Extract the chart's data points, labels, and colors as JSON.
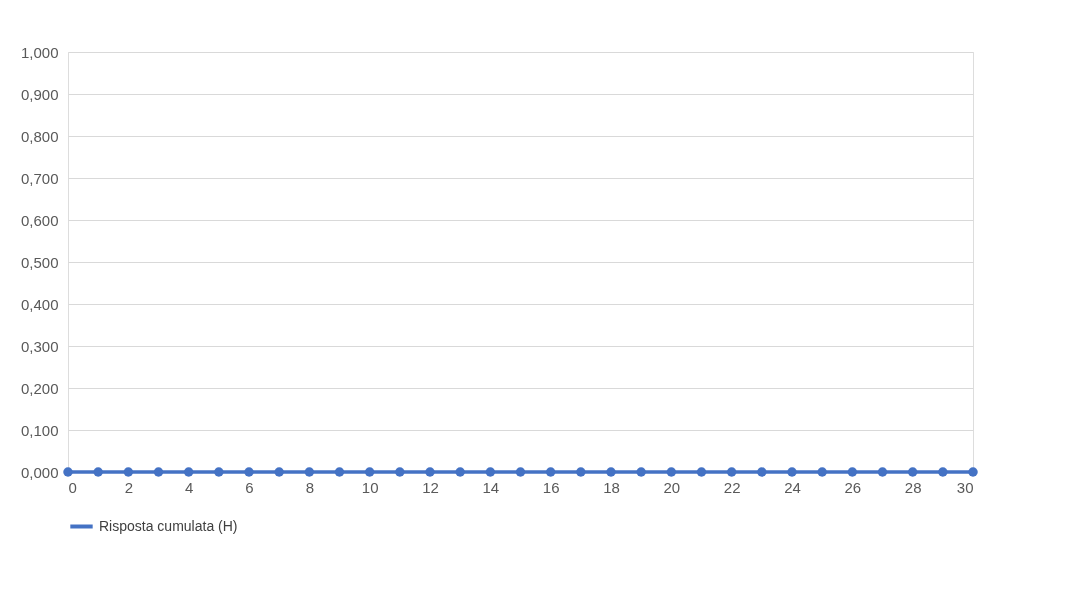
{
  "chart_data": {
    "type": "line",
    "x": [
      0,
      1,
      2,
      3,
      4,
      5,
      6,
      7,
      8,
      9,
      10,
      11,
      12,
      13,
      14,
      15,
      16,
      17,
      18,
      19,
      20,
      21,
      22,
      23,
      24,
      25,
      26,
      27,
      28,
      29,
      30
    ],
    "series": [
      {
        "name": "Risposta cumulata (H)",
        "color": "#4472c4",
        "values": [
          0,
          0,
          0,
          0,
          0,
          0,
          0,
          0,
          0,
          0,
          0,
          0,
          0,
          0,
          0,
          0,
          0,
          0,
          0,
          0,
          0,
          0,
          0,
          0,
          0,
          0,
          0,
          0,
          0,
          0,
          0
        ]
      }
    ],
    "xlim": [
      0,
      30
    ],
    "xticks": [
      0,
      2,
      4,
      6,
      8,
      10,
      12,
      14,
      16,
      18,
      20,
      22,
      24,
      26,
      28,
      30
    ],
    "ylim": [
      0,
      1
    ],
    "yticks": [
      {
        "value": 0,
        "label": "0,000"
      },
      {
        "value": 0.1,
        "label": "0,100"
      },
      {
        "value": 0.2,
        "label": "0,200"
      },
      {
        "value": 0.3,
        "label": "0,300"
      },
      {
        "value": 0.4,
        "label": "0,400"
      },
      {
        "value": 0.5,
        "label": "0,500"
      },
      {
        "value": 0.6,
        "label": "0,600"
      },
      {
        "value": 0.7,
        "label": "0,700"
      },
      {
        "value": 0.8,
        "label": "0,800"
      },
      {
        "value": 0.9,
        "label": "0,900"
      },
      {
        "value": 1,
        "label": "1,000"
      }
    ],
    "grid": "y",
    "legend": "bottom",
    "marker": "circle",
    "line_style": "solid"
  }
}
